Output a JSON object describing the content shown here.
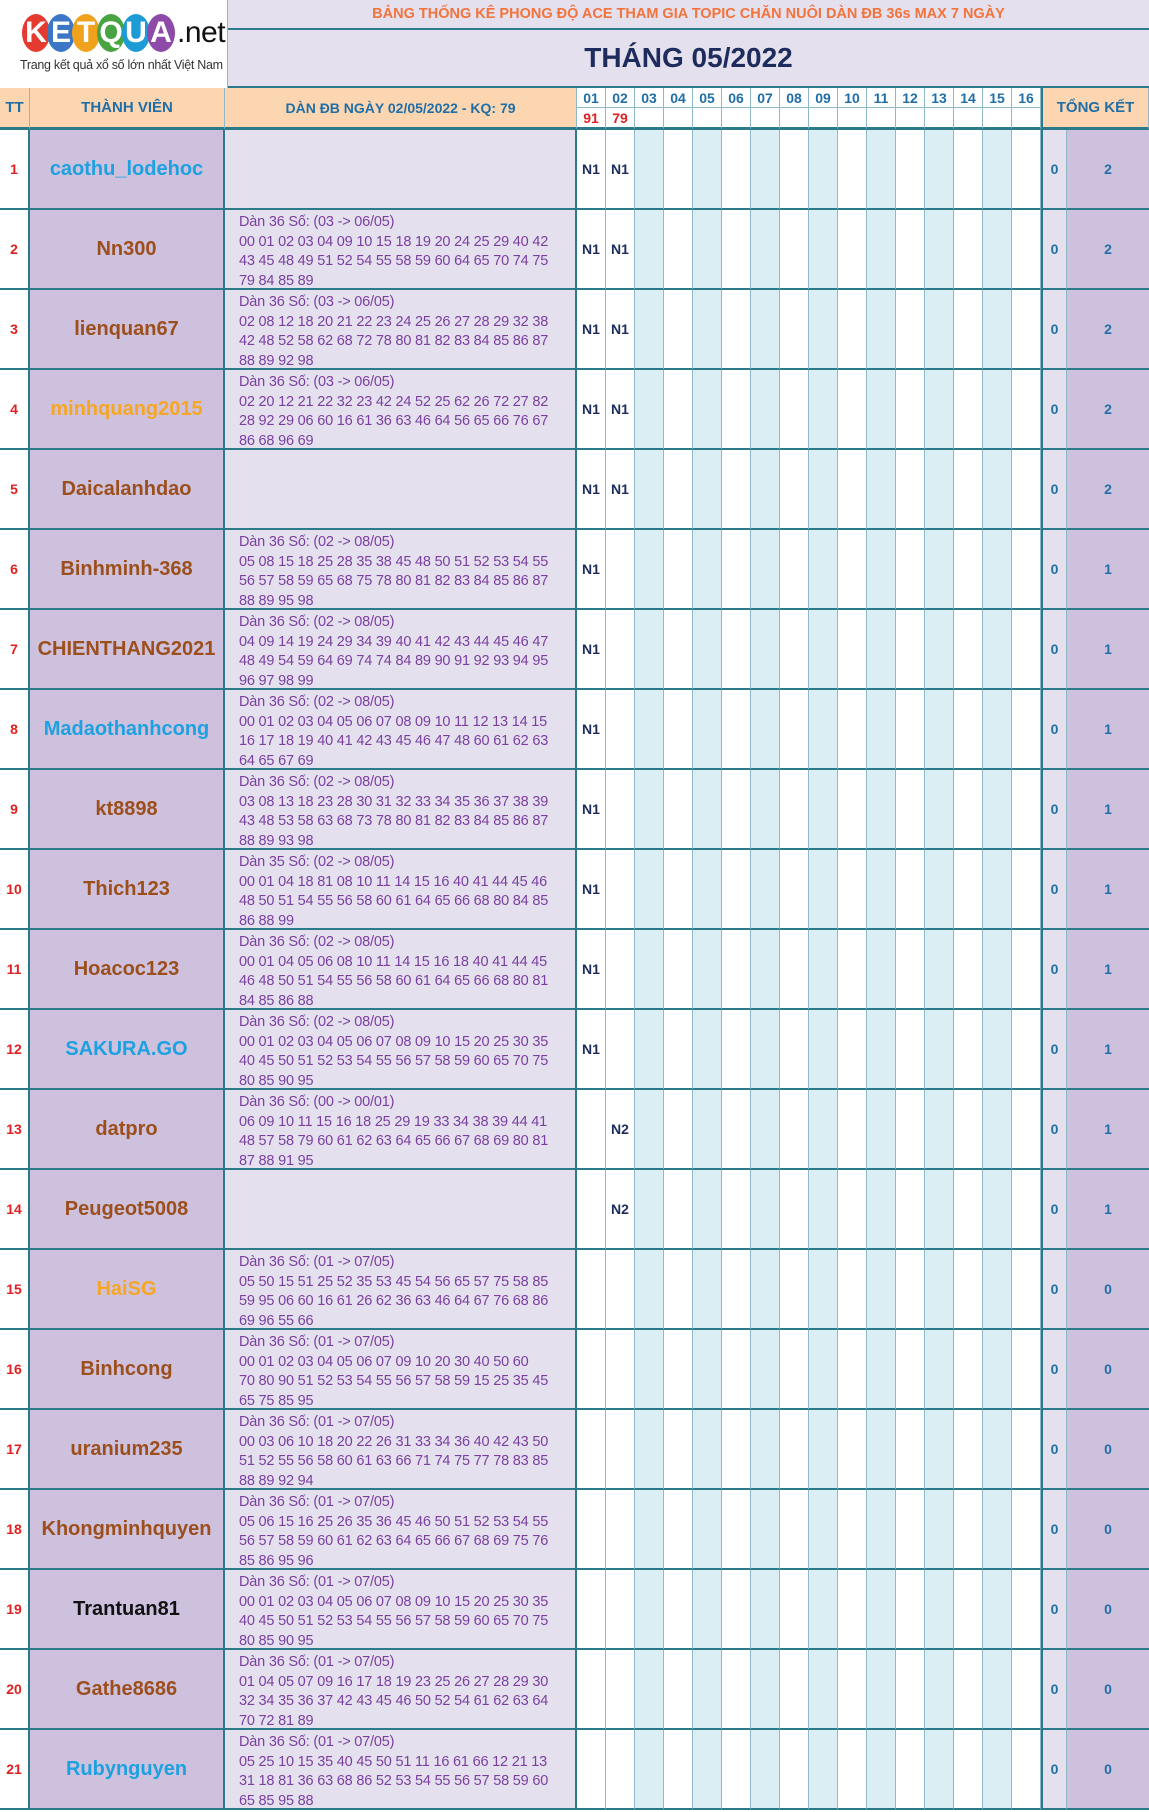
{
  "logo": {
    "letters": [
      {
        "ch": "K",
        "color": "#e53a2f"
      },
      {
        "ch": "E",
        "color": "#3b77c4"
      },
      {
        "ch": "T",
        "color": "#f0a21d"
      },
      {
        "ch": "Q",
        "color": "#48a343"
      },
      {
        "ch": "U",
        "color": "#1d9bd5"
      },
      {
        "ch": "A",
        "color": "#8d4aa8"
      }
    ],
    "suffix": ".net",
    "tagline": "Trang kết quả xổ số lớn nhất Việt Nam"
  },
  "title": "BẢNG THỐNG KÊ PHONG ĐỘ ACE THAM GIA TOPIC CHĂN NUÔI DÀN ĐB 36s MAX 7 NGÀY",
  "month": "THÁNG 05/2022",
  "headers": {
    "tt": "TT",
    "member": "THÀNH VIÊN",
    "dan": "DÀN ĐB NGÀY 02/05/2022 - KQ: 79",
    "summary": "TỔNG KẾT"
  },
  "days": [
    "01",
    "02",
    "03",
    "04",
    "05",
    "06",
    "07",
    "08",
    "09",
    "10",
    "11",
    "12",
    "13",
    "14",
    "15",
    "16"
  ],
  "results": [
    "91",
    "79",
    "",
    "",
    "",
    "",
    "",
    "",
    "",
    "",
    "",
    "",
    "",
    "",
    "",
    ""
  ],
  "colors": {
    "day_odd": "#ffffff",
    "day_even": "#daeef3"
  },
  "rows": [
    {
      "tt": "1",
      "name": "caothu_lodehoc",
      "color": "#1da1e0",
      "dan": [],
      "marks": [
        "N1",
        "N1"
      ],
      "a": "0",
      "b": "2"
    },
    {
      "tt": "2",
      "name": "Nn300",
      "color": "#9c4f1c",
      "dan": [
        "Dàn 36 Số: (03 -> 06/05)",
        "00 01 02 03 04 09 10 15 18 19 20 24 25 29 40 42",
        "43 45 48 49 51 52 54 55 58 59 60 64 65 70 74 75",
        "79 84 85 89"
      ],
      "marks": [
        "N1",
        "N1"
      ],
      "a": "0",
      "b": "2"
    },
    {
      "tt": "3",
      "name": "lienquan67",
      "color": "#9c4f1c",
      "dan": [
        "Dàn 36 Số: (03 -> 06/05)",
        "02 08 12 18 20 21 22 23 24 25 26 27 28 29 32 38",
        "42 48 52 58 62 68 72 78 80 81 82 83 84 85 86 87",
        "88 89 92 98"
      ],
      "marks": [
        "N1",
        "N1"
      ],
      "a": "0",
      "b": "2"
    },
    {
      "tt": "4",
      "name": "minhquang2015",
      "color": "#f7a623",
      "dan": [
        "Dàn 36 Số: (03 -> 06/05)",
        "02 20 12 21 22 32 23 42 24 52 25 62 26 72 27 82",
        "28 92 29 06 60 16 61 36 63 46 64 56 65 66 76 67",
        "86 68 96 69"
      ],
      "marks": [
        "N1",
        "N1"
      ],
      "a": "0",
      "b": "2"
    },
    {
      "tt": "5",
      "name": "Daicalanhdao",
      "color": "#9c4f1c",
      "dan": [],
      "marks": [
        "N1",
        "N1"
      ],
      "a": "0",
      "b": "2"
    },
    {
      "tt": "6",
      "name": "Binhminh-368",
      "color": "#9c4f1c",
      "dan": [
        "Dàn 36 Số: (02 -> 08/05)",
        "05 08 15 18 25 28 35 38 45 48 50 51 52 53 54 55",
        "56 57 58 59 65 68 75 78 80 81 82 83 84 85 86 87",
        "88 89 95 98"
      ],
      "marks": [
        "N1",
        ""
      ],
      "a": "0",
      "b": "1"
    },
    {
      "tt": "7",
      "name": "CHIENTHANG2021",
      "color": "#9c4f1c",
      "dan": [
        "Dàn 36 Số: (02 -> 08/05)",
        "04 09 14 19 24 29 34 39 40 41 42 43 44 45 46 47",
        "48 49 54 59 64 69 74 74 84 89 90 91 92 93 94 95",
        "96 97 98 99"
      ],
      "marks": [
        "N1",
        ""
      ],
      "a": "0",
      "b": "1"
    },
    {
      "tt": "8",
      "name": "Madaothanhcong",
      "color": "#1da1e0",
      "dan": [
        "Dàn 36 Số: (02 -> 08/05)",
        "00 01 02 03 04 05 06 07 08 09 10 11 12 13 14 15",
        "16 17 18 19 40 41 42 43 45 46 47 48 60 61 62 63",
        "64 65 67 69"
      ],
      "marks": [
        "N1",
        ""
      ],
      "a": "0",
      "b": "1"
    },
    {
      "tt": "9",
      "name": "kt8898",
      "color": "#9c4f1c",
      "dan": [
        "Dàn 36 Số: (02 -> 08/05)",
        "03 08 13 18 23 28 30 31 32 33 34 35 36 37 38 39",
        "43 48 53 58 63 68 73 78 80 81 82 83 84 85 86 87",
        "88 89 93 98"
      ],
      "marks": [
        "N1",
        ""
      ],
      "a": "0",
      "b": "1"
    },
    {
      "tt": "10",
      "name": "Thich123",
      "color": "#9c4f1c",
      "dan": [
        "Dàn 35 Số: (02 -> 08/05)",
        "00 01 04 18 81 08 10 11 14 15 16 40 41 44 45 46",
        "48 50 51 54 55 56 58 60 61 64 65 66 68 80 84 85",
        "86 88 99"
      ],
      "marks": [
        "N1",
        ""
      ],
      "a": "0",
      "b": "1"
    },
    {
      "tt": "11",
      "name": "Hoacoc123",
      "color": "#9c4f1c",
      "dan": [
        "Dàn 36 Số: (02 -> 08/05)",
        "00 01 04 05 06 08 10 11 14 15 16 18 40 41 44 45",
        "46 48 50 51 54 55 56 58 60 61 64 65 66 68 80 81",
        "84 85 86 88"
      ],
      "marks": [
        "N1",
        ""
      ],
      "a": "0",
      "b": "1"
    },
    {
      "tt": "12",
      "name": "SAKURA.GO",
      "color": "#1da1e0",
      "dan": [
        "Dàn 36 Số: (02 -> 08/05)",
        "00 01 02 03 04 05 06 07 08 09 10 15 20 25 30 35",
        "40 45 50 51 52 53 54 55 56 57 58 59 60 65 70 75",
        "80 85 90 95"
      ],
      "marks": [
        "N1",
        ""
      ],
      "a": "0",
      "b": "1"
    },
    {
      "tt": "13",
      "name": "datpro",
      "color": "#9c4f1c",
      "dan": [
        "Dàn 36 Số: (00 -> 00/01)",
        "06 09 10 11 15 16 18 25 29 19 33 34 38 39 44 41",
        "48 57 58 79 60 61 62 63 64 65 66 67 68 69 80 81",
        "87 88 91 95"
      ],
      "marks": [
        "",
        "N2"
      ],
      "a": "0",
      "b": "1"
    },
    {
      "tt": "14",
      "name": "Peugeot5008",
      "color": "#9c4f1c",
      "dan": [],
      "marks": [
        "",
        "N2"
      ],
      "a": "0",
      "b": "1"
    },
    {
      "tt": "15",
      "name": "HaiSG",
      "color": "#f7a623",
      "dan": [
        "Dàn 36 Số: (01 -> 07/05)",
        "05 50 15 51 25 52 35 53 45 54 56 65 57 75 58 85",
        "59 95 06 60 16 61 26 62 36 63 46 64 67 76 68 86",
        "69 96 55 66"
      ],
      "marks": [
        "",
        ""
      ],
      "a": "0",
      "b": "0"
    },
    {
      "tt": "16",
      "name": "Binhcong",
      "color": "#9c4f1c",
      "dan": [
        "Dàn 36 Số: (01 -> 07/05)",
        "00 01 02 03 04 05 06 07 09 10 20 30 40 50 60",
        "70 80 90 51 52 53 54 55 56 57 58 59 15 25 35 45",
        "65 75 85 95"
      ],
      "marks": [
        "",
        ""
      ],
      "a": "0",
      "b": "0"
    },
    {
      "tt": "17",
      "name": "uranium235",
      "color": "#9c4f1c",
      "dan": [
        "Dàn 36 Số: (01 -> 07/05)",
        "00 03 06 10 18 20 22 26 31 33 34 36 40 42 43 50",
        "51 52 55 56 58 60 61 63 66 71 74 75 77 78 83 85",
        "88 89 92 94"
      ],
      "marks": [
        "",
        ""
      ],
      "a": "0",
      "b": "0"
    },
    {
      "tt": "18",
      "name": "Khongminhquyen",
      "color": "#9c4f1c",
      "dan": [
        "Dàn 36 Số: (01 -> 07/05)",
        "05 06 15 16 25 26 35 36 45 46 50 51 52 53 54 55",
        "56 57 58 59 60 61 62 63 64 65 66 67 68 69 75 76",
        "85 86 95 96"
      ],
      "marks": [
        "",
        ""
      ],
      "a": "0",
      "b": "0"
    },
    {
      "tt": "19",
      "name": "Trantuan81",
      "color": "#111111",
      "dan": [
        "Dàn 36 Số: (01 -> 07/05)",
        "00 01 02 03 04 05 06 07 08 09 10 15 20 25 30 35",
        "40 45 50 51 52 53 54 55 56 57 58 59 60 65 70 75",
        "80 85 90 95"
      ],
      "marks": [
        "",
        ""
      ],
      "a": "0",
      "b": "0"
    },
    {
      "tt": "20",
      "name": "Gathe8686",
      "color": "#9c4f1c",
      "dan": [
        "Dàn 36 Số: (01 -> 07/05)",
        "01 04 05 07 09 16 17 18 19 23 25 26 27 28 29 30",
        "32 34 35 36 37 42 43 45 46 50 52 54 61 62 63 64",
        "70 72 81 89"
      ],
      "marks": [
        "",
        ""
      ],
      "a": "0",
      "b": "0"
    },
    {
      "tt": "21",
      "name": "Rubynguyen",
      "color": "#1da1e0",
      "dan": [
        "Dàn 36 Số: (01 -> 07/05)",
        "05 25 10 15 35 40 45 50 51 11 16 61 66 12 21 13",
        "31 18 81 36 63 68 86 52 53 54 55 56 57 58 59 60",
        "65 85 95 88"
      ],
      "marks": [
        "",
        ""
      ],
      "a": "0",
      "b": "0"
    }
  ]
}
